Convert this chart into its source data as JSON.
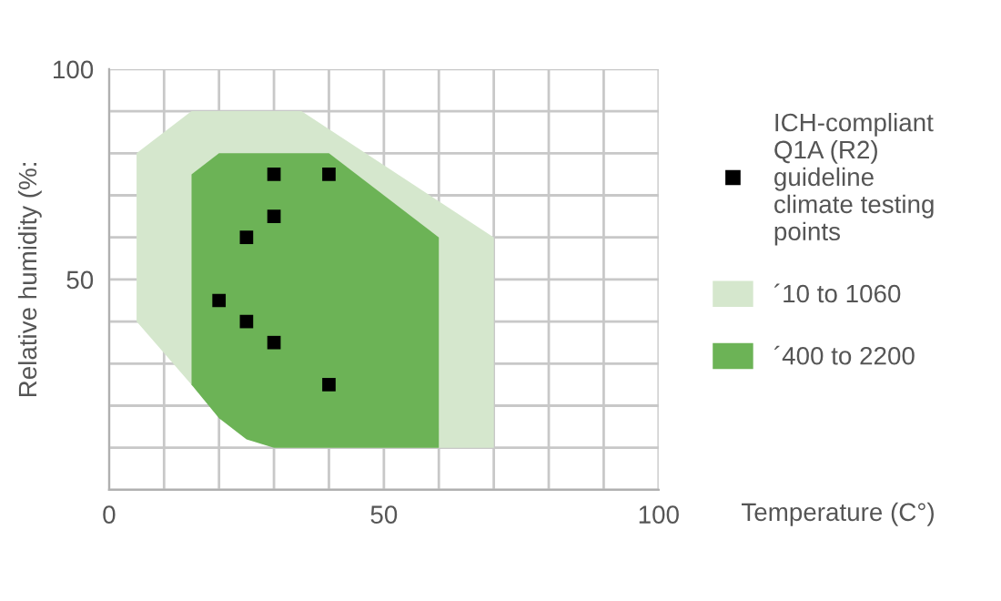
{
  "chart_data": {
    "type": "area",
    "xlabel": "Temperature (C°)",
    "ylabel": "Relative humidity (%:",
    "xlim": [
      0,
      100
    ],
    "ylim": [
      0,
      100
    ],
    "xticks": [
      0,
      {
        "value": 10,
        "label": null
      },
      {
        "value": 20,
        "label": null
      },
      {
        "value": 30,
        "label": null
      },
      {
        "value": 40,
        "label": null
      },
      50,
      {
        "value": 60,
        "label": null
      },
      {
        "value": 70,
        "label": null
      },
      {
        "value": 80,
        "label": null
      },
      {
        "value": 90,
        "label": null
      },
      100
    ],
    "yticks": [
      {
        "value": 0,
        "label": null
      },
      {
        "value": 10,
        "label": null
      },
      {
        "value": 20,
        "label": null
      },
      {
        "value": 30,
        "label": null
      },
      {
        "value": 40,
        "label": null
      },
      50,
      {
        "value": 60,
        "label": null
      },
      {
        "value": 70,
        "label": null
      },
      {
        "value": 80,
        "label": null
      },
      {
        "value": 90,
        "label": null
      },
      100
    ],
    "grid": true,
    "legend": "right",
    "series": [
      {
        "name": "ICH-compliant Q1A (R2) guideline climate testing points",
        "type": "scatter",
        "marker": "square",
        "color": "#000000",
        "x": [
          30,
          40,
          30,
          25,
          20,
          25,
          30,
          40
        ],
        "values": [
          75,
          75,
          65,
          60,
          45,
          40,
          35,
          25
        ]
      },
      {
        "name": "´10 to 1060",
        "color": "#d5e7cd",
        "x": [
          5,
          15,
          35,
          70,
          70,
          30,
          15,
          5,
          5
        ],
        "values": [
          80,
          90,
          90,
          60,
          10,
          10,
          25,
          40,
          80
        ]
      },
      {
        "name": "´400 to 2200",
        "color": "#6cb356",
        "x": [
          15,
          20,
          40,
          60,
          60,
          30,
          25,
          20,
          15,
          15
        ],
        "values": [
          75,
          80,
          80,
          60,
          10,
          10,
          12,
          17,
          25,
          75
        ]
      }
    ]
  }
}
